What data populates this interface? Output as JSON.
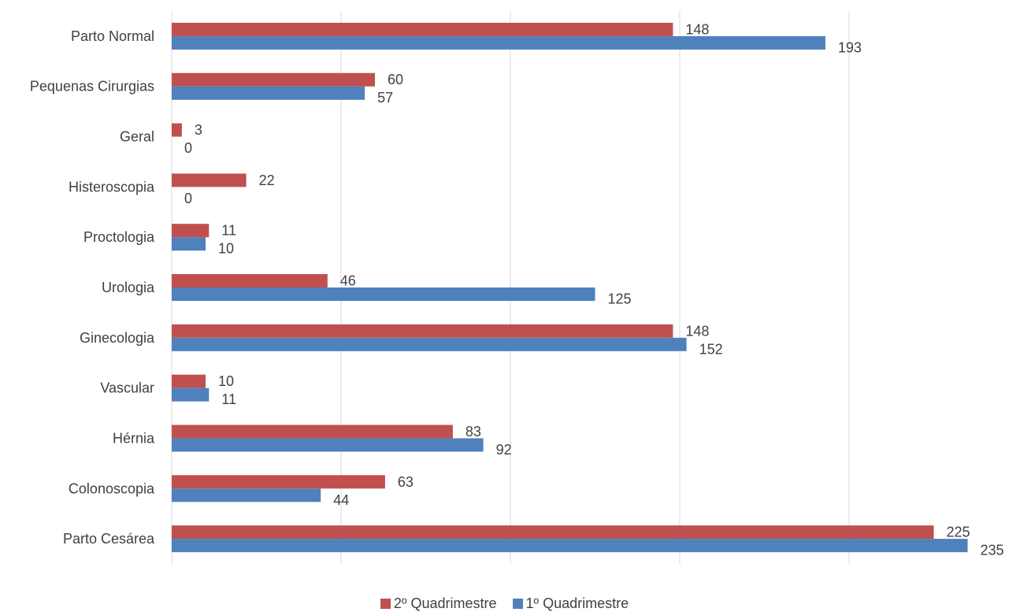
{
  "chart_data": {
    "type": "bar",
    "orientation": "horizontal",
    "categories": [
      "Parto Normal",
      "Pequenas Cirurgias",
      "Geral",
      "Histeroscopia",
      "Proctologia",
      "Urologia",
      "Ginecologia",
      "Vascular",
      "Hérnia",
      "Colonoscopia",
      "Parto Cesárea"
    ],
    "series": [
      {
        "name": "2º Quadrimestre",
        "color": "#C0504D",
        "values": [
          148,
          60,
          3,
          22,
          11,
          46,
          148,
          10,
          83,
          63,
          225
        ]
      },
      {
        "name": "1º Quadrimestre",
        "color": "#4F81BD",
        "values": [
          193,
          57,
          0,
          0,
          10,
          125,
          152,
          11,
          92,
          44,
          235
        ]
      }
    ],
    "xlim": [
      0,
      250
    ],
    "grid": true,
    "legend_position": "bottom"
  }
}
